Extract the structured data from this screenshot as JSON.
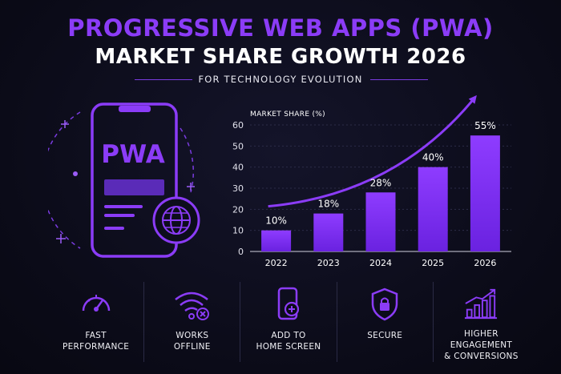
{
  "header": {
    "title_line1": "PROGRESSIVE WEB APPS (PWA)",
    "title_line2": "MARKET SHARE GROWTH 2026",
    "subtitle": "FOR TECHNOLOGY EVOLUTION"
  },
  "illustration": {
    "logo_text": "PWA"
  },
  "chart_data": {
    "type": "bar",
    "ylabel": "MARKET SHARE (%)",
    "categories": [
      "2022",
      "2023",
      "2024",
      "2025",
      "2026"
    ],
    "values": [
      10,
      18,
      28,
      40,
      55
    ],
    "data_labels": [
      "10%",
      "18%",
      "28%",
      "40%",
      "55%"
    ],
    "ylim": [
      0,
      60
    ],
    "yticks": [
      "0",
      "10",
      "20",
      "30",
      "40",
      "50",
      "60"
    ],
    "grid": true,
    "trend_arrow": true,
    "bar_color": "#7b2ff2"
  },
  "features": [
    {
      "icon": "speedometer-icon",
      "label": "FAST\nPERFORMANCE"
    },
    {
      "icon": "wifi-off-icon",
      "label": "WORKS\nOFFLINE"
    },
    {
      "icon": "add-to-home-icon",
      "label": "ADD TO\nHOME SCREEN"
    },
    {
      "icon": "shield-lock-icon",
      "label": "SECURE"
    },
    {
      "icon": "growth-chart-icon",
      "label": "HIGHER ENGAGEMENT\n& CONVERSIONS"
    }
  ],
  "colors": {
    "accent": "#8b3cf7",
    "background": "#0b0b18",
    "text": "#ffffff"
  }
}
